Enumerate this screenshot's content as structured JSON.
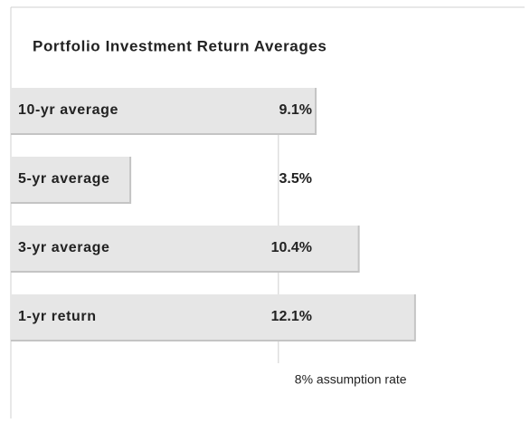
{
  "chart_data": {
    "type": "bar",
    "orientation": "horizontal",
    "title": "Portfolio Investment Return Averages",
    "categories": [
      "10-yr average",
      "5-yr average",
      "3-yr average",
      "1-yr return"
    ],
    "values": [
      9.1,
      3.5,
      10.4,
      12.1
    ],
    "value_labels": [
      "9.1%",
      "3.5%",
      "10.4%",
      "12.1%"
    ],
    "color": "#e6e6e6",
    "reference": {
      "value": 8,
      "label": "8% assumption rate"
    }
  }
}
